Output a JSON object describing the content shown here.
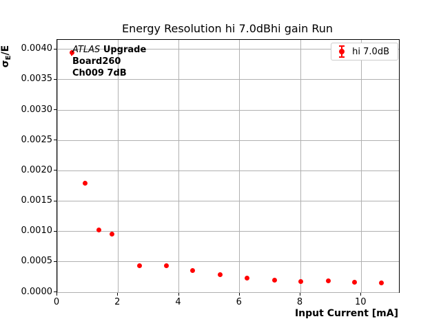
{
  "figure": {
    "title": "Energy Resolution hi 7.0dBhi gain Run",
    "background": "#ffffff"
  },
  "colors": {
    "marker": "#ff0000",
    "grid": "#b0b0b0",
    "spine": "#000000",
    "legend_border": "#cccccc"
  },
  "axes": {
    "xlabel": "Input Current [mA]",
    "ylabel_sigma": "σ",
    "ylabel_sub": "E",
    "ylabel_rest": "/E"
  },
  "annotation": {
    "line1_italic": "ATLAS",
    "line1_bold": "Upgrade",
    "line2": "Board260",
    "line3": "Ch009 7dB"
  },
  "legend": {
    "label": "hi 7.0dB"
  },
  "chart_data": {
    "type": "scatter",
    "title": "Energy Resolution hi 7.0dBhi gain Run",
    "xlabel": "Input Current [mA]",
    "ylabel": "σE/E",
    "grid": true,
    "legend_position": "upper right",
    "xlim": [
      0,
      11.24
    ],
    "ylim": [
      0,
      0.004155
    ],
    "xticks": [
      0,
      2,
      4,
      6,
      8,
      10
    ],
    "xticklabels": [
      "0",
      "2",
      "4",
      "6",
      "8",
      "10"
    ],
    "yticks": [
      0.0,
      0.0005,
      0.001,
      0.0015,
      0.002,
      0.0025,
      0.003,
      0.0035,
      0.004
    ],
    "yticklabels": [
      "0.0000",
      "0.0005",
      "0.0010",
      "0.0015",
      "0.0020",
      "0.0025",
      "0.0030",
      "0.0035",
      "0.0040"
    ],
    "series": [
      {
        "name": "hi 7.0dB",
        "color": "#ff0000",
        "marker": "errorbar-dot",
        "x": [
          0.48,
          0.91,
          1.37,
          1.81,
          2.7,
          3.6,
          4.46,
          5.36,
          6.24,
          7.15,
          8.02,
          8.91,
          9.78,
          10.67
        ],
        "y": [
          0.00394,
          0.0018,
          0.00102,
          0.00096,
          0.00044,
          0.000435,
          0.00036,
          0.00029,
          0.000235,
          0.000195,
          0.000175,
          0.00019,
          0.00016,
          0.000155
        ],
        "yerr": [
          4e-05,
          3e-05,
          2e-05,
          2e-05,
          2e-05,
          2e-05,
          1e-05,
          1e-05,
          1e-05,
          1e-05,
          1e-05,
          1e-05,
          1e-05,
          1e-05
        ]
      }
    ]
  }
}
